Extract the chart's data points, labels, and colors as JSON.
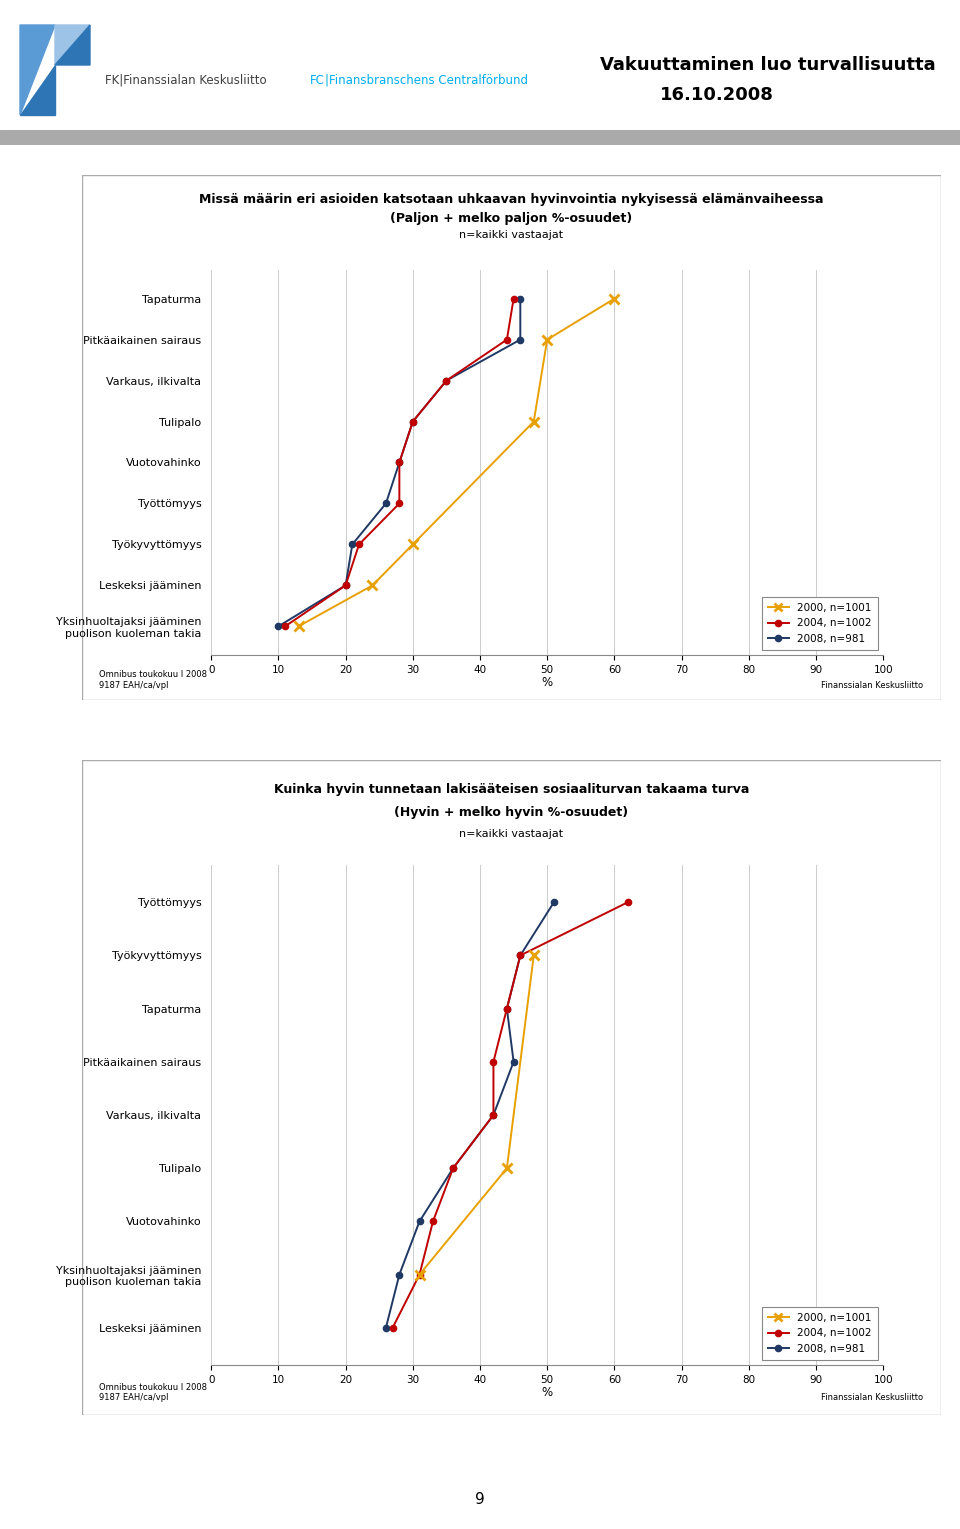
{
  "header_title_line1": "Vakuuttaminen luo turvallisuutta",
  "header_title_line2": "16.10.2008",
  "page_number": "9",
  "chart1": {
    "title": "Missä määrin eri asioiden katsotaan uhkaavan hyvinvointia nykyisessä elämänvaiheessa",
    "subtitle": "(Paljon + melko paljon %-osuudet)",
    "subtitle2": "n=kaikki vastaajat",
    "categories": [
      "Tapaturma",
      "Pitkäaikainen sairaus",
      "Varkaus, ilkivalta",
      "Tulipalo",
      "Vuotovahinko",
      "Työttömyys",
      "Työkyvyttömyys",
      "Leskeksi jääminen",
      "Yksinhuoltajaksi jääminen\npuolison kuoleman takia"
    ],
    "series_2000": [
      60,
      50,
      null,
      48,
      null,
      null,
      30,
      24,
      13
    ],
    "series_2004": [
      45,
      44,
      35,
      30,
      28,
      28,
      22,
      20,
      11
    ],
    "series_2008": [
      46,
      46,
      35,
      30,
      28,
      26,
      21,
      20,
      10
    ],
    "xticks": [
      0,
      10,
      20,
      30,
      40,
      50,
      60,
      70,
      80,
      90,
      100
    ],
    "xlabel": "%",
    "legend_2000": "2000, n=1001",
    "legend_2004": "2004, n=1002",
    "legend_2008": "2008, n=981",
    "color_2000": "#E8A000",
    "color_2004": "#C00000",
    "color_2008": "#1F3864"
  },
  "chart2": {
    "title": "Kuinka hyvin tunnetaan lakisääteisen sosiaaliturvan takaama turva",
    "subtitle": "(Hyvin + melko hyvin %-osuudet)",
    "subtitle2": "n=kaikki vastaajat",
    "categories": [
      "Työttömyys",
      "Työkyvyttömyys",
      "Tapaturma",
      "Pitkäaikainen sairaus",
      "Varkaus, ilkivalta",
      "Tulipalo",
      "Vuotovahinko",
      "Yksinhuoltajaksi jääminen\npuolison kuoleman takia",
      "Leskeksi jääminen"
    ],
    "series_2000": [
      null,
      48,
      null,
      null,
      null,
      44,
      null,
      31,
      null
    ],
    "series_2004": [
      62,
      46,
      44,
      42,
      42,
      36,
      33,
      31,
      27
    ],
    "series_2008": [
      51,
      46,
      44,
      45,
      42,
      36,
      31,
      28,
      26
    ],
    "xticks": [
      0,
      10,
      20,
      30,
      40,
      50,
      60,
      70,
      80,
      90,
      100
    ],
    "xlabel": "%",
    "legend_2000": "2000, n=1001",
    "legend_2004": "2004, n=1002",
    "legend_2008": "2008, n=981",
    "color_2000": "#E8A000",
    "color_2004": "#C00000",
    "color_2008": "#1F3864"
  }
}
